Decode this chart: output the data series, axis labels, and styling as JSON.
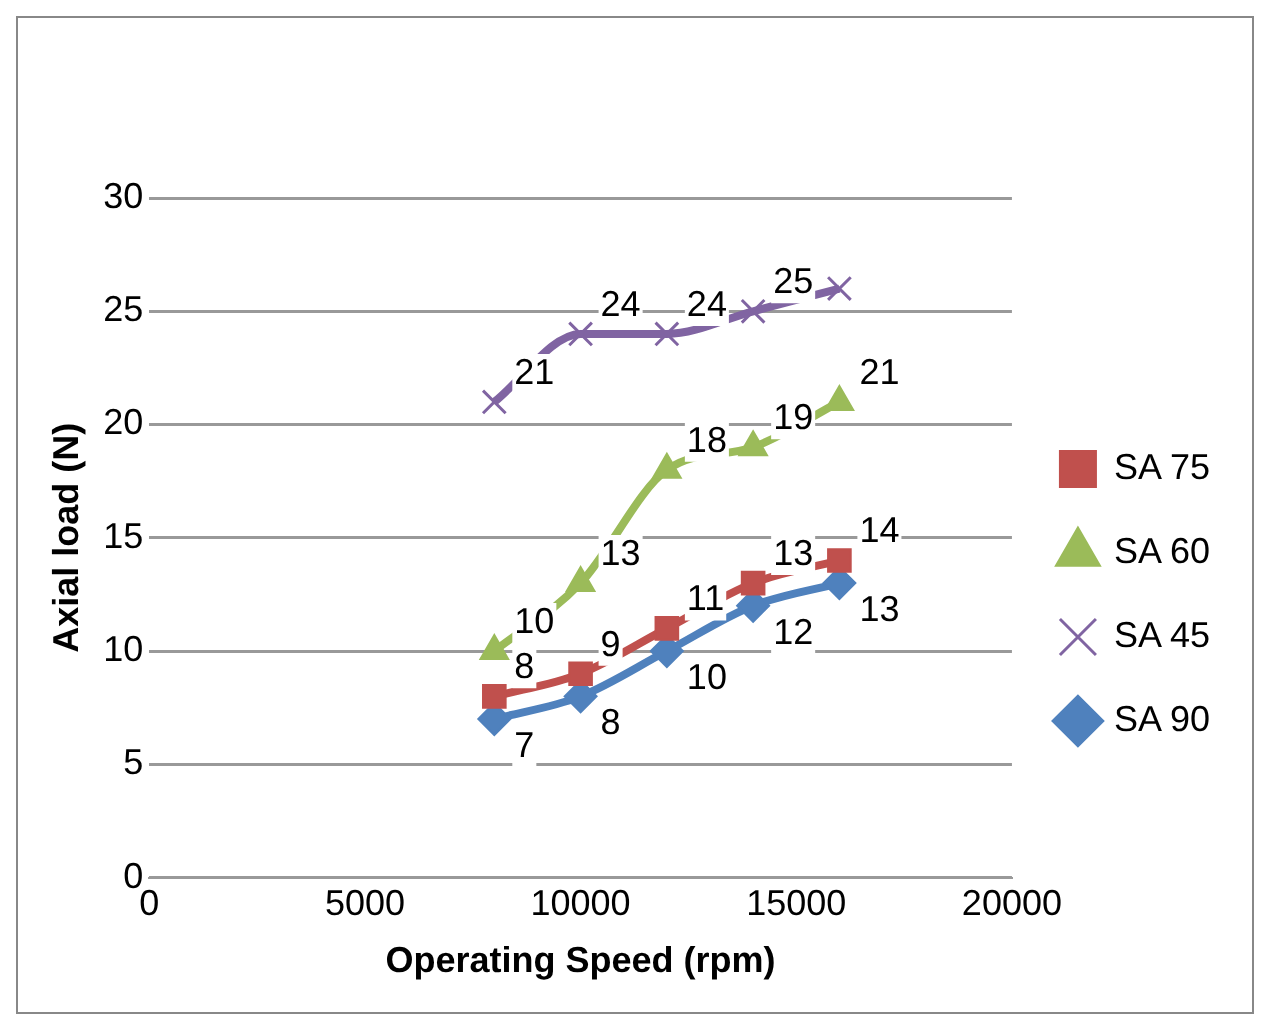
{
  "chart_data": {
    "type": "line",
    "xlabel": "Operating Speed (rpm)",
    "ylabel": "Axial load (N)",
    "x": [
      8000,
      10000,
      12000,
      14000,
      16000
    ],
    "series": [
      {
        "name": "SA 75",
        "color": "#c0504d",
        "marker": "square",
        "values": [
          8,
          9,
          11,
          13,
          14
        ]
      },
      {
        "name": "SA 60",
        "color": "#9bbb59",
        "marker": "triangle",
        "values": [
          10,
          13,
          18,
          19,
          21
        ]
      },
      {
        "name": "SA 45",
        "color": "#8064a2",
        "marker": "cross",
        "values": [
          21,
          24,
          24,
          25,
          26
        ],
        "value_labels": [
          "21",
          "24",
          "24",
          "25",
          null
        ]
      },
      {
        "name": "SA 90",
        "color": "#4f81bd",
        "marker": "diamond",
        "values": [
          7,
          8,
          10,
          12,
          13
        ]
      }
    ],
    "xlim": [
      0,
      20000
    ],
    "xticks": [
      0,
      5000,
      10000,
      15000,
      20000
    ],
    "ylim": [
      0,
      30
    ],
    "yticks": [
      0,
      5,
      10,
      15,
      20,
      25,
      30
    ],
    "grid": "y",
    "legend": "right",
    "data_labels": true
  }
}
